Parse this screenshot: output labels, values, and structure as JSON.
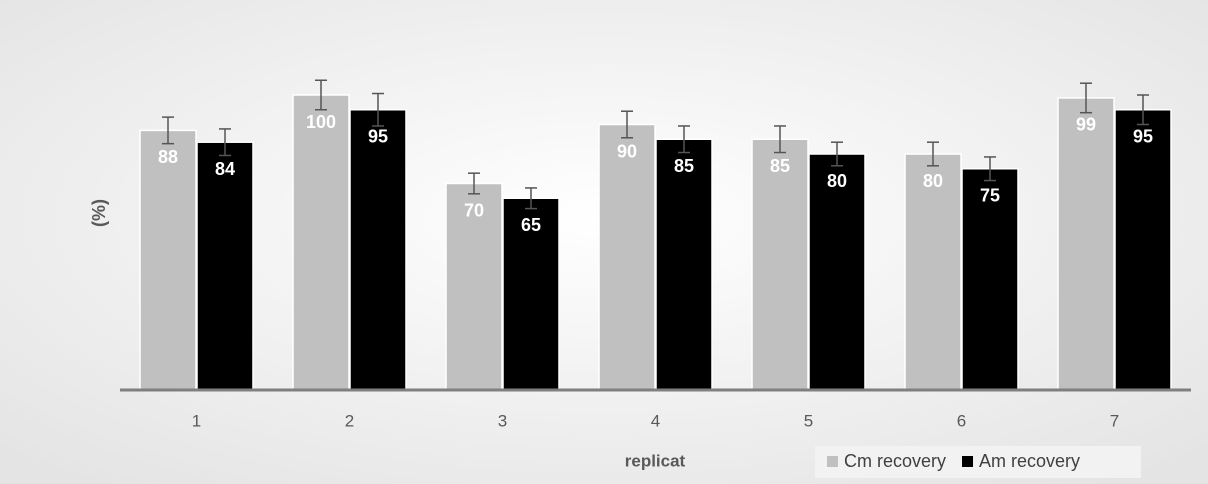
{
  "chart_data": {
    "type": "bar",
    "x_label": "replicat",
    "y_label": "(%)",
    "categories": [
      "1",
      "2",
      "3",
      "4",
      "5",
      "6",
      "7"
    ],
    "series": [
      {
        "name": "Cm recovery",
        "color": "#c0c0c0",
        "values": [
          88,
          100,
          70,
          90,
          85,
          80,
          99
        ],
        "errors": [
          4.5,
          5,
          3.5,
          4.5,
          4.5,
          4,
          5
        ]
      },
      {
        "name": "Am recovery",
        "color": "#000000",
        "values": [
          84,
          95,
          65,
          85,
          80,
          75,
          95
        ],
        "errors": [
          4.5,
          5.5,
          3.5,
          4.5,
          4,
          4,
          5
        ]
      }
    ],
    "ylim": [
      0,
      110
    ],
    "legend": "bottom-right"
  }
}
